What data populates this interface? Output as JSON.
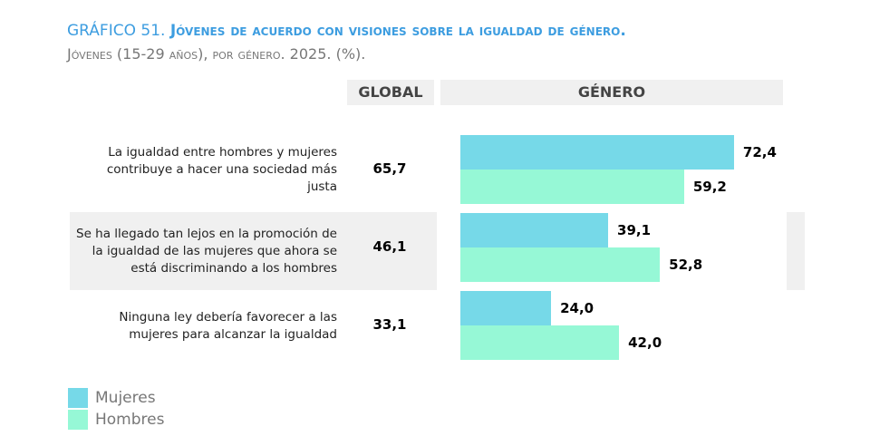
{
  "chart_data": {
    "type": "bar",
    "title_label": "GRÁFICO 51.",
    "title": "Jóvenes de acuerdo con visiones sobre la igualdad de género.",
    "subtitle": "Jóvenes (15-29 años), por género. 2025. (%).",
    "global_header": "GLOBAL",
    "series_header": "GÉNERO",
    "categories": [
      "La igualdad entre hombres y mujeres contribuye a hacer una sociedad más justa",
      "Se ha llegado tan lejos en la promoción de la igualdad de las mujeres que ahora se está discriminando a los hombres",
      "Ninguna ley debería favorecer a las mujeres para alcanzar la igualdad"
    ],
    "global": {
      "values": [
        65.7,
        46.1,
        33.1
      ],
      "value_labels": [
        "65,7",
        "46,1",
        "33,1"
      ]
    },
    "series": [
      {
        "name": "Mujeres",
        "color": "#76d9e8",
        "values": [
          72.4,
          39.1,
          24.0
        ],
        "value_labels": [
          "72,4",
          "39,1",
          "24,0"
        ]
      },
      {
        "name": "Hombres",
        "color": "#96f8d6",
        "values": [
          59.2,
          52.8,
          42.0
        ],
        "value_labels": [
          "59,2",
          "52,8",
          "42,0"
        ]
      }
    ]
  }
}
